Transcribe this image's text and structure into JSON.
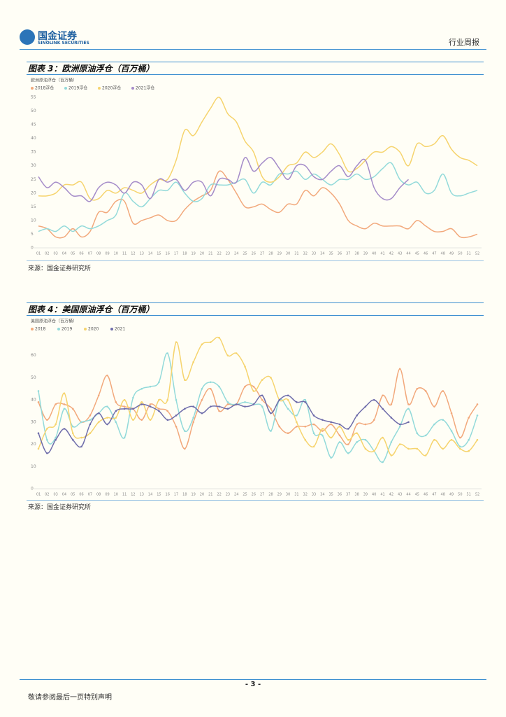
{
  "header": {
    "logo_cn": "国金证券",
    "logo_en": "SINOLINK SECURITIES",
    "report_type": "行业周报"
  },
  "figures": [
    {
      "title": "图表 3：欧洲原油浮仓（百万桶）",
      "source": "来源：国金证券研究所",
      "chart": {
        "type": "line",
        "title": "欧洲原油浮仓（百万桶）",
        "smooth": true,
        "markers": false,
        "grid": false,
        "categories": [
          "01",
          "02",
          "03",
          "04",
          "05",
          "06",
          "07",
          "08",
          "09",
          "10",
          "11",
          "12",
          "13",
          "14",
          "15",
          "16",
          "17",
          "18",
          "19",
          "20",
          "21",
          "22",
          "23",
          "24",
          "25",
          "26",
          "27",
          "28",
          "29",
          "30",
          "31",
          "32",
          "33",
          "34",
          "35",
          "36",
          "37",
          "38",
          "39",
          "40",
          "41",
          "42",
          "43",
          "44",
          "45",
          "46",
          "47",
          "48",
          "49",
          "50",
          "51",
          "52"
        ],
        "ylim": [
          0,
          55
        ],
        "yticks": [
          0,
          5,
          10,
          15,
          20,
          25,
          30,
          35,
          40,
          45,
          50,
          55
        ],
        "series": [
          {
            "name": "2018浮仓",
            "color": "#f2a97c",
            "values": [
              8,
              7,
              4,
              4,
              7,
              4,
              6,
              13,
              13,
              17,
              17,
              9,
              10,
              11,
              12,
              10,
              10,
              14,
              17,
              19,
              21,
              28,
              25,
              20,
              15,
              15,
              16,
              14,
              13,
              16,
              16,
              21,
              19,
              22,
              20,
              16,
              10,
              8,
              7,
              9,
              8,
              8,
              8,
              7,
              10,
              8,
              6,
              6,
              7,
              4,
              4,
              5
            ]
          },
          {
            "name": "2019浮仓",
            "color": "#93dada",
            "values": [
              6,
              7,
              6,
              8,
              6,
              8,
              7,
              8,
              10,
              12,
              20,
              17,
              15,
              18,
              21,
              21,
              24,
              20,
              17,
              18,
              23,
              23,
              23,
              24,
              25,
              20,
              24,
              23,
              27,
              27,
              28,
              25,
              27,
              25,
              23,
              25,
              25,
              27,
              25,
              26,
              29,
              31,
              25,
              23,
              24,
              20,
              21,
              27,
              20,
              19,
              20,
              21
            ]
          },
          {
            "name": "2020浮仓",
            "color": "#f6d46e",
            "values": [
              19,
              19,
              20,
              23,
              23,
              24,
              18,
              18,
              21,
              20,
              22,
              21,
              20,
              23,
              25,
              25,
              32,
              43,
              41,
              46,
              51,
              55,
              49,
              46,
              39,
              35,
              26,
              24,
              26,
              30,
              31,
              35,
              33,
              35,
              38,
              34,
              28,
              29,
              32,
              35,
              35,
              37,
              35,
              30,
              38,
              37,
              38,
              41,
              36,
              33,
              32,
              30
            ]
          },
          {
            "name": "2021浮仓",
            "color": "#a58cc9",
            "values": [
              26,
              22,
              24,
              22,
              19,
              19,
              17,
              22,
              24,
              23,
              20,
              24,
              23,
              18,
              25,
              24,
              25,
              21,
              24,
              24,
              19,
              25,
              25,
              24,
              33,
              28,
              31,
              33,
              29,
              25,
              30,
              30,
              26,
              25,
              28,
              30,
              26,
              30,
              32,
              22,
              18,
              18,
              22,
              25,
              null,
              null,
              null,
              null,
              null,
              null,
              null,
              null
            ]
          }
        ]
      }
    },
    {
      "title": "图表 4：美国原油浮仓（百万桶）",
      "source": "来源：国金证券研究所",
      "chart": {
        "type": "line",
        "title": "美国原油浮仓（百万桶）",
        "smooth": true,
        "markers": true,
        "grid": false,
        "categories": [
          "01",
          "02",
          "03",
          "04",
          "05",
          "06",
          "07",
          "08",
          "09",
          "10",
          "11",
          "12",
          "13",
          "14",
          "15",
          "16",
          "17",
          "18",
          "19",
          "20",
          "21",
          "22",
          "23",
          "24",
          "25",
          "26",
          "27",
          "28",
          "29",
          "30",
          "31",
          "32",
          "33",
          "34",
          "35",
          "36",
          "37",
          "38",
          "39",
          "40",
          "41",
          "42",
          "43",
          "44",
          "45",
          "46",
          "47",
          "48",
          "49",
          "50",
          "51",
          "52"
        ],
        "ylim": [
          0,
          70
        ],
        "yticks": [
          0,
          10,
          20,
          30,
          40,
          50,
          60
        ],
        "series": [
          {
            "name": "2018",
            "color": "#f2a97c",
            "values": [
              39,
              31,
              38,
              38,
              36,
              30,
              33,
              42,
              51,
              39,
              37,
              36,
              31,
              38,
              36,
              35,
              28,
              18,
              30,
              40,
              45,
              35,
              38,
              38,
              46,
              46,
              40,
              36,
              28,
              25,
              28,
              28,
              29,
              26,
              29,
              24,
              20,
              29,
              29,
              31,
              42,
              38,
              54,
              38,
              45,
              44,
              37,
              44,
              34,
              23,
              32,
              38
            ]
          },
          {
            "name": "2019",
            "color": "#93dada",
            "values": [
              44,
              22,
              23,
              36,
              28,
              30,
              31,
              34,
              37,
              30,
              23,
              41,
              45,
              46,
              48,
              61,
              40,
              26,
              32,
              45,
              48,
              46,
              39,
              38,
              39,
              38,
              37,
              26,
              40,
              36,
              33,
              40,
              25,
              24,
              14,
              21,
              16,
              21,
              22,
              17,
              12,
              21,
              28,
              36,
              25,
              24,
              29,
              31,
              26,
              19,
              22,
              33
            ]
          },
          {
            "name": "2020",
            "color": "#f6d46e",
            "values": [
              18,
              27,
              29,
              43,
              25,
              23,
              25,
              30,
              32,
              32,
              40,
              31,
              39,
              31,
              40,
              40,
              66,
              49,
              57,
              65,
              66,
              68,
              60,
              61,
              55,
              44,
              49,
              50,
              40,
              40,
              30,
              22,
              19,
              27,
              23,
              28,
              22,
              25,
              18,
              17,
              23,
              15,
              20,
              18,
              18,
              15,
              22,
              18,
              22,
              18,
              17,
              22
            ]
          },
          {
            "name": "2021",
            "color": "#6f6dab",
            "values": [
              25,
              16,
              22,
              27,
              22,
              19,
              29,
              34,
              29,
              35,
              36,
              36,
              38,
              37,
              35,
              31,
              33,
              36,
              37,
              34,
              37,
              37,
              36,
              38,
              37,
              38,
              42,
              34,
              40,
              42,
              39,
              39,
              33,
              31,
              30,
              29,
              27,
              33,
              37,
              40,
              36,
              32,
              29,
              30,
              null,
              null,
              null,
              null,
              null,
              null,
              null,
              null
            ]
          }
        ]
      }
    }
  ],
  "footer": {
    "page": "- 3 -",
    "disclaimer": "敬请参阅最后一页特别声明"
  }
}
